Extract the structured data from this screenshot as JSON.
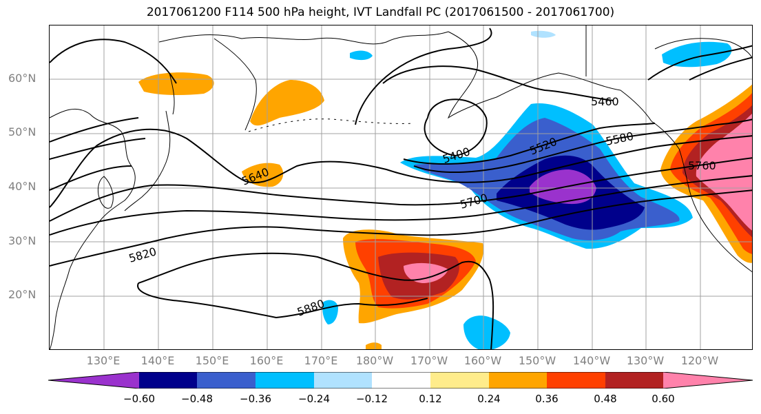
{
  "title": "2017061200 F114 500 hPa height, IVT Landfall PC (2017061500 - 2017061700)",
  "lat_labels": [
    "60°N",
    "50°N",
    "40°N",
    "30°N",
    "20°N"
  ],
  "lon_labels": [
    "130°E",
    "140°E",
    "150°E",
    "160°E",
    "170°E",
    "180°W",
    "170°W",
    "160°W",
    "150°W",
    "140°W",
    "130°W",
    "120°W"
  ],
  "contour_labels": [
    "5460",
    "5400",
    "5520",
    "5580",
    "5640",
    "5700",
    "5760",
    "5820",
    "5880"
  ],
  "colorbar": {
    "tick_labels": [
      "−0.60",
      "−0.48",
      "−0.36",
      "−0.24",
      "−0.12",
      "0.12",
      "0.24",
      "0.36",
      "0.48",
      "0.60"
    ],
    "colors": [
      "#9a32cd",
      "#00008b",
      "#3a5fcd",
      "#00bfff",
      "#b0e2ff",
      "#ffffff",
      "#ffec8b",
      "#ffa500",
      "#ff4000",
      "#b22222",
      "#ff82ab"
    ]
  }
}
